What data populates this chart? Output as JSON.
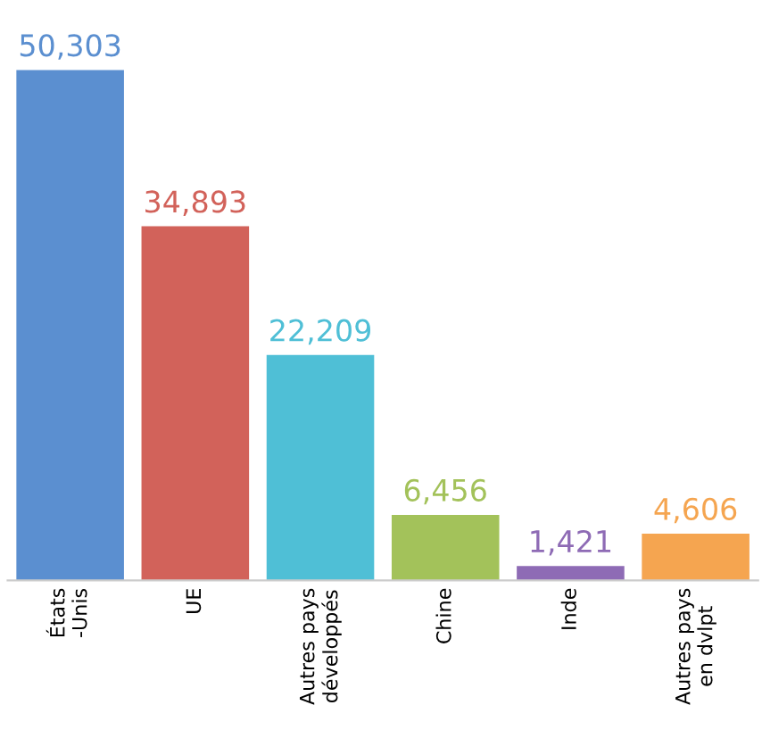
{
  "chart_data": {
    "type": "bar",
    "categories": [
      "États\n-Unis",
      "UE",
      "Autres pays\ndéveloppés",
      "Chine",
      "Inde",
      "Autres pays\nen dvlpt"
    ],
    "values": [
      50303,
      34893,
      22209,
      6456,
      1421,
      4606
    ],
    "colors": [
      "#5b8fd0",
      "#d2625a",
      "#4fbfd6",
      "#a3c25a",
      "#8e6bb5",
      "#f5a550"
    ],
    "value_labels": [
      "50,303",
      "34,893",
      "22,209",
      "6,456",
      "1,421",
      "4,606"
    ],
    "grid": false,
    "legend": false
  }
}
